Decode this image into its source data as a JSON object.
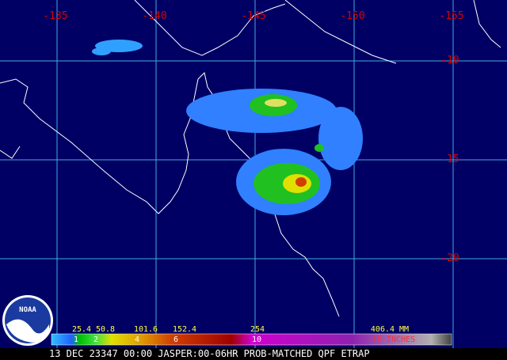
{
  "map": {
    "longitude_labels": [
      "-135",
      "-140",
      "-145",
      "-150",
      "-155"
    ],
    "latitude_labels": [
      "-10",
      "-15",
      "-20"
    ]
  },
  "legend": {
    "mm_labels": [
      "25.4",
      "50.8",
      "101.6",
      "152.4",
      "254",
      "406.4 MM"
    ],
    "inch_labels": [
      "1",
      "2",
      "4",
      "6",
      "10",
      "16 INCHES"
    ]
  },
  "logo": "NOAA",
  "caption": "13 DEC 23347 00:00 JASPER:00-06HR PROB-MATCHED QPF ETRAP"
}
